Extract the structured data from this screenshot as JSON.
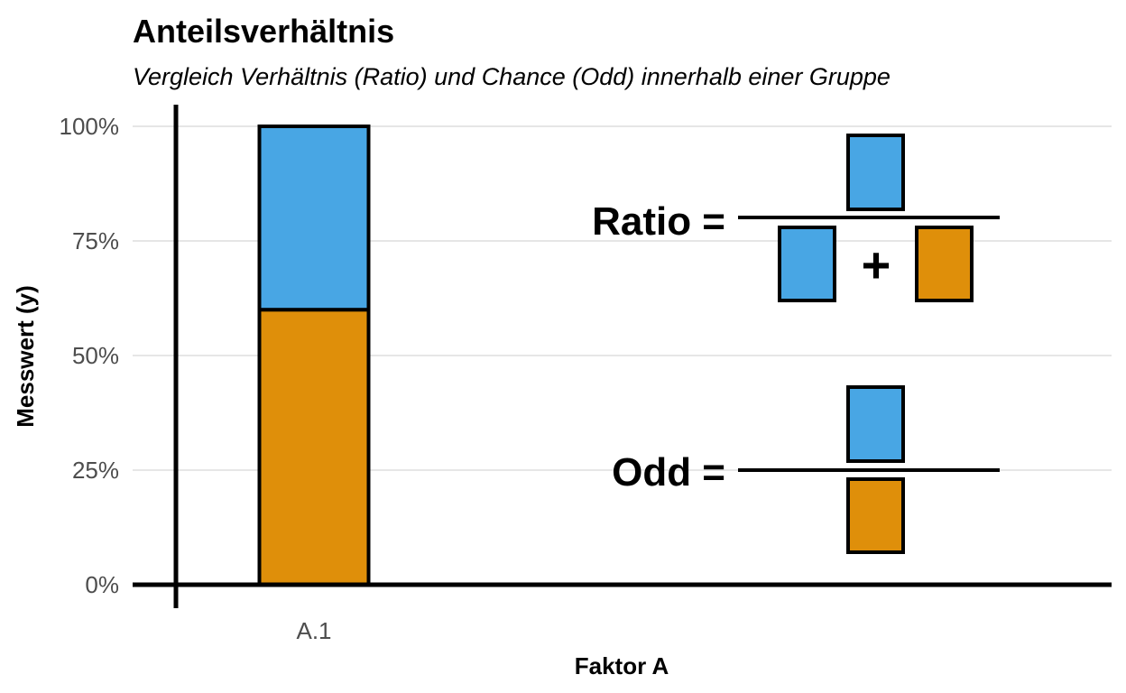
{
  "chart_data": {
    "type": "bar",
    "stacked": true,
    "title": "Anteilsverhältnis",
    "subtitle": "Vergleich Verhältnis (Ratio) und Chance (Odd) innerhalb einer Gruppe",
    "xlabel": "Faktor A",
    "ylabel": "Messwert (y)",
    "categories": [
      "A.1"
    ],
    "ylim": [
      0,
      1
    ],
    "yticks": [
      "0%",
      "25%",
      "50%",
      "75%",
      "100%"
    ],
    "ytick_values": [
      0,
      0.25,
      0.5,
      0.75,
      1.0
    ],
    "grid": "horizontal",
    "series": [
      {
        "values": [
          0.6
        ],
        "color": "#DF8F0A"
      },
      {
        "values": [
          0.4
        ],
        "color": "#48A6E4"
      }
    ],
    "annotations": {
      "ratio_label": "Ratio =",
      "odd_label": "Odd =",
      "plus_sign": "+",
      "colors": {
        "blue": "#48A6E4",
        "orange": "#DF8F0A"
      }
    }
  }
}
